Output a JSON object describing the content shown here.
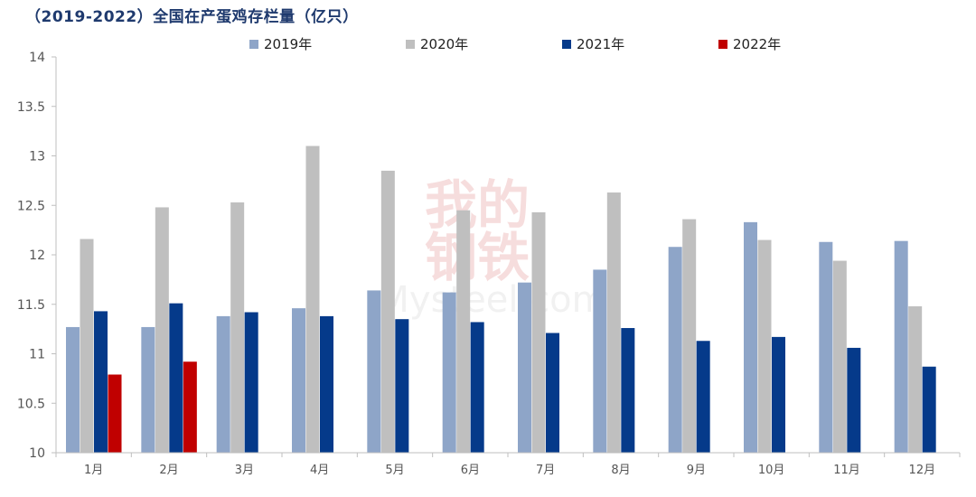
{
  "title": "（2019-2022）全国在产蛋鸡存栏量（亿只）",
  "watermark": {
    "line1": "我的",
    "line2": "钢铁",
    "line3": "Mysteel.com"
  },
  "chart_data": {
    "type": "bar",
    "title": "（2019-2022）全国在产蛋鸡存栏量（亿只）",
    "categories": [
      "1月",
      "2月",
      "3月",
      "4月",
      "5月",
      "6月",
      "7月",
      "8月",
      "9月",
      "10月",
      "11月",
      "12月"
    ],
    "ylim": [
      10,
      14
    ],
    "yticks": [
      "10",
      "10.5",
      "11",
      "11.5",
      "12",
      "12.5",
      "13",
      "13.5",
      "14"
    ],
    "ytick_values": [
      10,
      10.5,
      11,
      11.5,
      12,
      12.5,
      13,
      13.5,
      14
    ],
    "grid": false,
    "legend_position": "top",
    "series": [
      {
        "name": "2019年",
        "color": "#8ea5c8",
        "values": [
          11.27,
          11.27,
          11.38,
          11.46,
          11.64,
          11.62,
          11.72,
          11.85,
          12.08,
          12.33,
          12.13,
          12.14
        ]
      },
      {
        "name": "2020年",
        "color": "#bfbfbf",
        "values": [
          12.16,
          12.48,
          12.53,
          13.1,
          12.85,
          12.45,
          12.43,
          12.63,
          12.36,
          12.15,
          11.94,
          11.48
        ]
      },
      {
        "name": "2021年",
        "color": "#053a8a",
        "values": [
          11.43,
          11.51,
          11.42,
          11.38,
          11.35,
          11.32,
          11.21,
          11.26,
          11.13,
          11.17,
          11.06,
          10.87
        ]
      },
      {
        "name": "2022年",
        "color": "#c00000",
        "values": [
          10.79,
          10.92,
          null,
          null,
          null,
          null,
          null,
          null,
          null,
          null,
          null,
          null
        ]
      }
    ]
  }
}
